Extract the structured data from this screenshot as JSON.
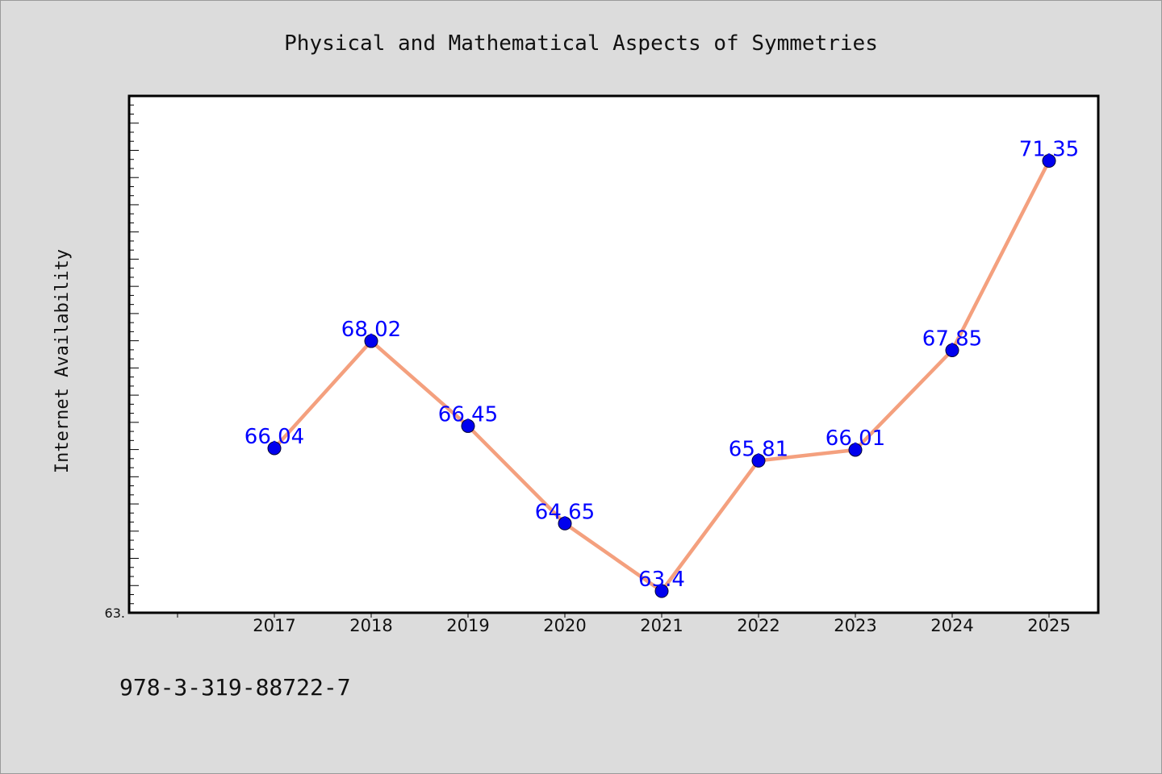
{
  "chart_data": {
    "type": "line",
    "title": "Physical and Mathematical Aspects of Symmetries",
    "xlabel": "",
    "ylabel": "Internet Availability",
    "categories": [
      "2017",
      "2018",
      "2019",
      "2020",
      "2021",
      "2022",
      "2023",
      "2024",
      "2025"
    ],
    "series": [
      {
        "values": [
          66.04,
          68.02,
          66.45,
          64.65,
          63.4,
          65.81,
          66.01,
          67.85,
          71.35
        ],
        "labels": [
          "66.04",
          "68.02",
          "66.45",
          "64.65",
          "63.4",
          "65.81",
          "66.01",
          "67.85",
          "71.35"
        ],
        "line_color": "#f4a07e",
        "marker_color": "#0000ee",
        "label_color": "#0000ff"
      }
    ],
    "y_min_label": "63.",
    "ylim": [
      63.0,
      72.55
    ],
    "grid": false,
    "legend": "none"
  },
  "footnote": "978-3-319-88722-7"
}
